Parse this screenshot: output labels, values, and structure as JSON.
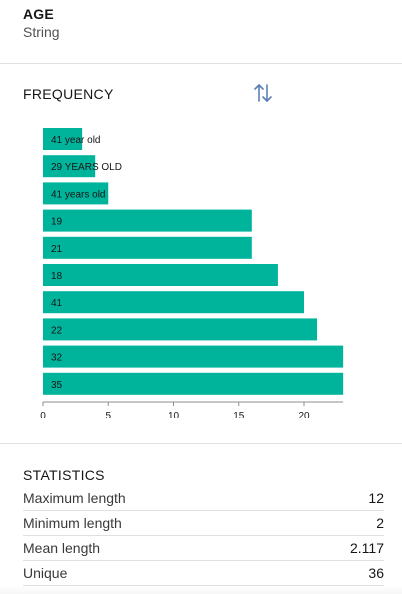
{
  "column": {
    "name": "AGE",
    "type": "String"
  },
  "frequency": {
    "title": "FREQUENCY",
    "sort_icon": "sort-arrows-icon",
    "accent_color": "#00b39b"
  },
  "chart_data": {
    "type": "bar",
    "orientation": "horizontal",
    "categories": [
      "41 year old",
      "29 YEARS OLD",
      "41 years old",
      "19",
      "21",
      "18",
      "41",
      "22",
      "32",
      "35"
    ],
    "values": [
      3,
      4,
      5,
      16,
      16,
      18,
      20,
      21,
      23,
      23
    ],
    "xlim": [
      0,
      23
    ],
    "xticks": [
      0,
      5,
      10,
      15,
      20
    ],
    "title": "",
    "xlabel": "",
    "ylabel": "",
    "grid": false
  },
  "statistics": {
    "title": "STATISTICS",
    "rows": [
      {
        "label": "Maximum length",
        "value": "12"
      },
      {
        "label": "Minimum length",
        "value": "2"
      },
      {
        "label": "Mean length",
        "value": "2.117"
      },
      {
        "label": "Unique",
        "value": "36"
      }
    ]
  }
}
